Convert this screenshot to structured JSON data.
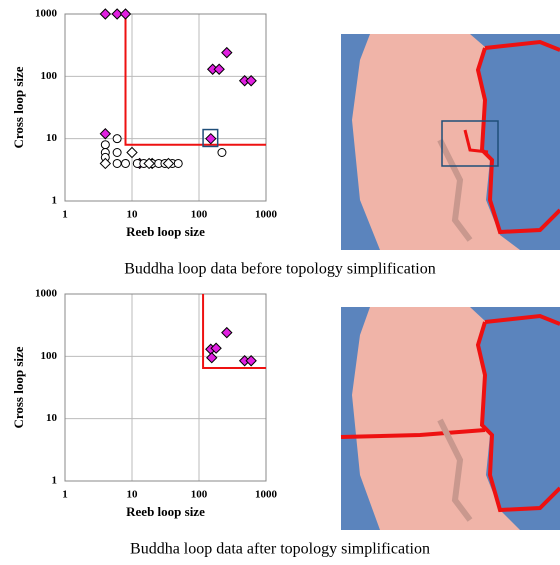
{
  "chart_data": [
    {
      "type": "scatter",
      "log_scale": {
        "x": true,
        "y": true
      },
      "grid": true,
      "xlabel": "Reeb loop size",
      "ylabel": "Cross loop size",
      "caption": "Buddha loop data before topology simplification",
      "xlim": [
        1,
        1000
      ],
      "ylim": [
        1,
        1000
      ],
      "xticks": [
        1,
        10,
        100,
        1000
      ],
      "yticks": [
        1,
        10,
        100,
        1000
      ],
      "threshold": {
        "x": 8,
        "y": 8,
        "color": "#ee1111"
      },
      "highlight": {
        "x": [
          115,
          190
        ],
        "y": [
          7.5,
          14
        ],
        "color": "#1f4e79"
      },
      "series": [
        {
          "marker": "diamond",
          "color": "#e020e0",
          "x": [
            4,
            6,
            8,
            4,
            150,
            160,
            200,
            260,
            480,
            600,
            13,
            20
          ],
          "y": [
            1000,
            1000,
            1000,
            12,
            10,
            130,
            130,
            240,
            85,
            85,
            4,
            4
          ]
        },
        {
          "marker": "circle",
          "color": "#ffffff",
          "x": [
            4,
            4,
            4,
            6,
            6,
            220,
            6,
            8,
            12,
            15,
            20,
            25,
            31,
            40,
            49
          ],
          "y": [
            8,
            6,
            5,
            10,
            6,
            6,
            4,
            4,
            4,
            4,
            4,
            4,
            4,
            4,
            4
          ]
        },
        {
          "marker": "diamond",
          "color": "#ffffff",
          "x": [
            4,
            10,
            18,
            35
          ],
          "y": [
            4,
            6,
            4,
            4
          ]
        }
      ]
    },
    {
      "type": "scatter",
      "log_scale": {
        "x": true,
        "y": true
      },
      "grid": true,
      "xlabel": "Reeb loop size",
      "ylabel": "Cross loop size",
      "caption": "Buddha loop data after topology simplification",
      "xlim": [
        1,
        1000
      ],
      "ylim": [
        1,
        1000
      ],
      "xticks": [
        1,
        10,
        100,
        1000
      ],
      "yticks": [
        1,
        10,
        100,
        1000
      ],
      "threshold": {
        "x": 115,
        "y": 65,
        "color": "#ee1111"
      },
      "series": [
        {
          "marker": "diamond",
          "color": "#e020e0",
          "x": [
            150,
            180,
            155,
            260,
            480,
            600
          ],
          "y": [
            130,
            135,
            95,
            240,
            85,
            85
          ]
        }
      ]
    }
  ]
}
